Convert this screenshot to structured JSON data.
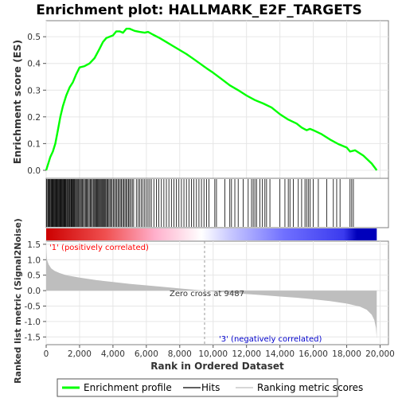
{
  "chart_data": {
    "type": "line",
    "title": "Enrichment plot: HALLMARK_E2F_TARGETS",
    "xlabel": "Rank in Ordered Dataset",
    "ylabel_top": "Enrichment score (ES)",
    "ylabel_bottom": "Ranked list metric (Signal2Noise)",
    "xlim": [
      0,
      20500
    ],
    "es_ylim": [
      -0.03,
      0.56
    ],
    "metric_ylim": [
      -1.75,
      1.6
    ],
    "x_ticks": [
      0,
      2000,
      4000,
      6000,
      8000,
      10000,
      12000,
      14000,
      16000,
      18000,
      20000
    ],
    "x_tick_labels": [
      "0",
      "2,000",
      "4,000",
      "6,000",
      "8,000",
      "10,000",
      "12,000",
      "14,000",
      "16,000",
      "18,000",
      "20,000"
    ],
    "es_ticks": [
      0.0,
      0.1,
      0.2,
      0.3,
      0.4,
      0.5
    ],
    "es_tick_labels": [
      "0.0",
      "0.1",
      "0.2",
      "0.3",
      "0.4",
      "0.5"
    ],
    "metric_ticks": [
      1.5,
      1.0,
      0.5,
      0.0,
      -0.5,
      -1.0,
      -1.5
    ],
    "metric_tick_labels": [
      "1.5",
      "1.0",
      "0.5",
      "0.0",
      "-0.5",
      "-1.0",
      "-1.5"
    ],
    "series": [
      {
        "name": "Enrichment profile",
        "color": "#00ff00",
        "x": [
          0,
          100,
          250,
          400,
          550,
          700,
          850,
          1000,
          1200,
          1400,
          1600,
          1800,
          2000,
          2300,
          2600,
          2900,
          3200,
          3400,
          3600,
          3800,
          4000,
          4200,
          4400,
          4600,
          4800,
          5000,
          5300,
          5600,
          5900,
          6100,
          6400,
          6800,
          7200,
          7600,
          8000,
          8400,
          8800,
          9200,
          9600,
          10000,
          10500,
          11000,
          11500,
          12000,
          12500,
          13000,
          13500,
          14000,
          14500,
          15000,
          15300,
          15600,
          15800,
          16000,
          16500,
          17000,
          17500,
          18000,
          18200,
          18500,
          19000,
          19500,
          19800
        ],
        "values": [
          0.0,
          0.02,
          0.05,
          0.07,
          0.1,
          0.15,
          0.2,
          0.24,
          0.28,
          0.31,
          0.33,
          0.36,
          0.385,
          0.39,
          0.4,
          0.42,
          0.455,
          0.48,
          0.495,
          0.5,
          0.505,
          0.52,
          0.52,
          0.515,
          0.53,
          0.53,
          0.522,
          0.518,
          0.515,
          0.518,
          0.508,
          0.495,
          0.48,
          0.465,
          0.45,
          0.435,
          0.418,
          0.4,
          0.382,
          0.365,
          0.342,
          0.318,
          0.3,
          0.28,
          0.263,
          0.25,
          0.235,
          0.21,
          0.19,
          0.175,
          0.16,
          0.15,
          0.155,
          0.15,
          0.135,
          0.115,
          0.098,
          0.085,
          0.07,
          0.075,
          0.055,
          0.025,
          0.0
        ]
      }
    ],
    "metric_profile": {
      "name": "Ranking metric scores",
      "color": "#bebebe",
      "x": [
        0,
        50,
        150,
        300,
        500,
        800,
        1200,
        2000,
        3000,
        4000,
        5000,
        6000,
        7000,
        8000,
        9000,
        9487,
        10000,
        11000,
        12000,
        13000,
        14000,
        15000,
        16000,
        17000,
        18000,
        18800,
        19200,
        19500,
        19650,
        19750,
        19800
      ],
      "values": [
        1.45,
        1.0,
        0.85,
        0.72,
        0.64,
        0.57,
        0.5,
        0.42,
        0.34,
        0.28,
        0.22,
        0.17,
        0.12,
        0.07,
        0.02,
        0.0,
        -0.03,
        -0.07,
        -0.11,
        -0.15,
        -0.19,
        -0.23,
        -0.28,
        -0.34,
        -0.42,
        -0.52,
        -0.62,
        -0.78,
        -0.95,
        -1.2,
        -1.55
      ]
    },
    "hits": [
      30,
      90,
      130,
      170,
      210,
      250,
      300,
      340,
      380,
      420,
      460,
      500,
      540,
      580,
      620,
      660,
      700,
      740,
      780,
      820,
      860,
      900,
      940,
      980,
      1020,
      1060,
      1100,
      1140,
      1180,
      1230,
      1270,
      1320,
      1360,
      1400,
      1440,
      1490,
      1530,
      1570,
      1620,
      1660,
      1700,
      1750,
      1800,
      1850,
      1900,
      1950,
      2000,
      2060,
      2110,
      2170,
      2230,
      2290,
      2350,
      2400,
      2460,
      2520,
      2580,
      2640,
      2700,
      2760,
      2820,
      2870,
      2920,
      2980,
      3030,
      3080,
      3130,
      3180,
      3230,
      3280,
      3330,
      3380,
      3430,
      3480,
      3530,
      3580,
      3640,
      3700,
      3760,
      3820,
      3880,
      3950,
      4020,
      4090,
      4160,
      4230,
      4300,
      4370,
      4440,
      4510,
      4580,
      4650,
      4720,
      4790,
      4860,
      4930,
      5000,
      5080,
      5160,
      5240,
      5400,
      5500,
      5600,
      5700,
      5800,
      5900,
      6000,
      6100,
      6200,
      6300,
      6450,
      6600,
      6750,
      6900,
      7050,
      7200,
      7350,
      7500,
      7650,
      7800,
      7950,
      8100,
      8250,
      8400,
      8550,
      8700,
      8850,
      9000,
      9150,
      9300,
      9450,
      9600,
      9750,
      10100,
      10200,
      10700,
      11000,
      11100,
      11300,
      11500,
      11800,
      12100,
      12300,
      12400,
      12500,
      12600,
      12800,
      12950,
      13100,
      13200,
      13400,
      14000,
      14300,
      14500,
      14600,
      14800,
      15100,
      15300,
      15500,
      15600,
      15700,
      15800,
      16000,
      16300,
      16800,
      17200,
      17400,
      17600,
      18200,
      18300,
      18400
    ],
    "zero_cross_rank": 9487,
    "annotations": {
      "positive": "'1' (positively correlated)",
      "zero_cross": "Zero cross at 9487",
      "negative": "'3' (negatively correlated)"
    },
    "colors": {
      "positive_bar": "#ff0000",
      "negative_bar": "#0000ff",
      "positive_text": "#ff0000",
      "negative_text": "#0000cc",
      "hit_line": "#000000"
    }
  },
  "legend": {
    "items": [
      {
        "label": "Enrichment profile",
        "color": "#00ff00"
      },
      {
        "label": "Hits",
        "color": "#000000"
      },
      {
        "label": "Ranking metric scores",
        "color": "#bebebe"
      }
    ],
    "placement": "bottom"
  }
}
